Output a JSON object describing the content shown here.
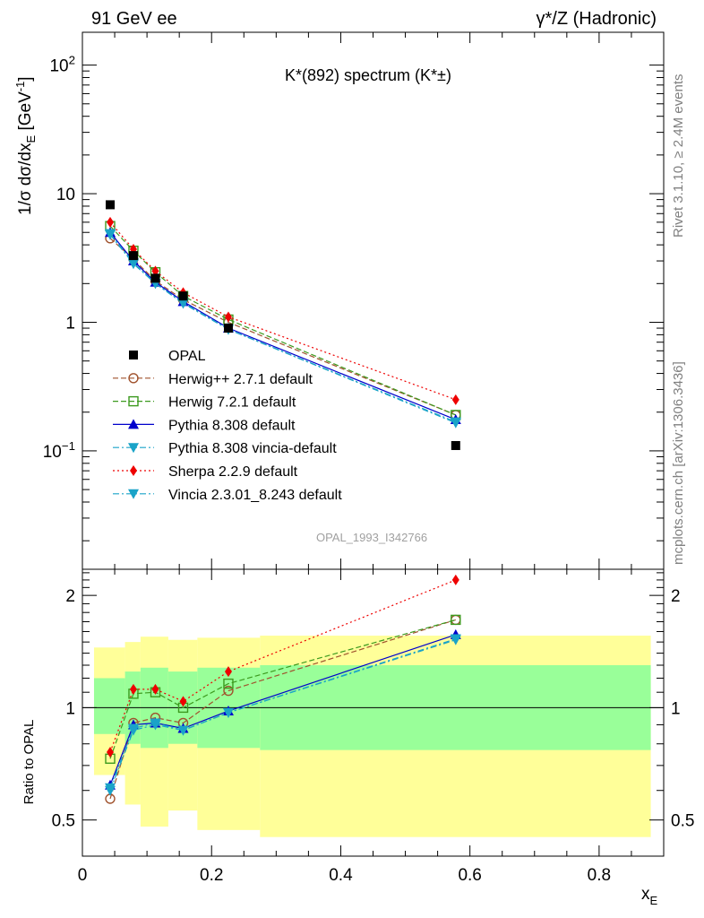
{
  "header": {
    "left": "91 GeV ee",
    "right": "γ*/Z (Hadronic)",
    "plot_title": "K*(892) spectrum (K*±)",
    "side_text_top": "Rivet 3.1.10, ≥ 2.4M events",
    "side_text_bottom": "mcplots.cern.ch [arXiv:1306.3436]",
    "watermark": "OPAL_1993_I342766"
  },
  "chart_data": [
    {
      "type": "scatter",
      "panel": "main",
      "ylabel": "1/σ dσ/dx_E [GeV^-1]",
      "yscale": "log",
      "ylim": [
        0.012,
        180
      ],
      "xlim": [
        0,
        0.9
      ],
      "yticks": [
        {
          "value": 0.1,
          "label": "10^-1"
        },
        {
          "value": 1,
          "label": "1"
        },
        {
          "value": 10,
          "label": "10"
        },
        {
          "value": 100,
          "label": "10^2"
        }
      ],
      "x": [
        0.043,
        0.079,
        0.113,
        0.156,
        0.226,
        0.578
      ],
      "series": [
        {
          "name": "OPAL",
          "color": "#000000",
          "marker": "square-filled",
          "line": "none",
          "values": [
            8.2,
            3.3,
            2.2,
            1.6,
            0.9,
            0.11
          ]
        },
        {
          "name": "Herwig++ 2.7.1 default",
          "color": "#a0522d",
          "marker": "circle-open",
          "line": "dashed",
          "values": [
            4.5,
            3.1,
            2.1,
            1.5,
            1.0,
            0.19
          ]
        },
        {
          "name": "Herwig 7.2.1 default",
          "color": "#3c9a1e",
          "marker": "square-open",
          "line": "dashed",
          "values": [
            5.6,
            3.6,
            2.45,
            1.6,
            1.05,
            0.19
          ]
        },
        {
          "name": "Pythia 8.308 default",
          "color": "#0000cc",
          "marker": "triangle-up",
          "line": "solid",
          "values": [
            5.0,
            3.0,
            2.05,
            1.45,
            0.9,
            0.175
          ]
        },
        {
          "name": "Pythia 8.308 vincia-default",
          "color": "#1aa3c8",
          "marker": "triangle-down",
          "line": "dashdot",
          "values": [
            4.8,
            2.85,
            2.0,
            1.4,
            0.88,
            0.165
          ]
        },
        {
          "name": "Sherpa 2.2.9 default",
          "color": "#ee0000",
          "marker": "diamond",
          "line": "dotted",
          "values": [
            6.0,
            3.7,
            2.5,
            1.7,
            1.1,
            0.25
          ]
        },
        {
          "name": "Vincia 2.3.01_8.243 default",
          "color": "#1aa3c8",
          "marker": "triangle-down",
          "line": "dashdot",
          "values": [
            4.9,
            2.9,
            2.0,
            1.42,
            0.88,
            0.168
          ]
        }
      ]
    },
    {
      "type": "scatter",
      "panel": "ratio",
      "ylabel": "Ratio to OPAL",
      "xlabel": "x_E",
      "yscale": "log",
      "ylim": [
        0.4,
        2.35
      ],
      "xlim": [
        0,
        0.9
      ],
      "yticks": [
        {
          "value": 0.5,
          "label": "0.5"
        },
        {
          "value": 1,
          "label": "1"
        },
        {
          "value": 2,
          "label": "2"
        }
      ],
      "xticks": [
        {
          "value": 0,
          "label": "0"
        },
        {
          "value": 0.2,
          "label": "0.2"
        },
        {
          "value": 0.4,
          "label": "0.4"
        },
        {
          "value": 0.6,
          "label": "0.6"
        },
        {
          "value": 0.8,
          "label": "0.8"
        }
      ],
      "bands": [
        {
          "x0": 0.018,
          "x1": 0.066,
          "inner": [
            0.85,
            1.2
          ],
          "outer": [
            0.66,
            1.45
          ]
        },
        {
          "x0": 0.066,
          "x1": 0.09,
          "inner": [
            0.8,
            1.25
          ],
          "outer": [
            0.55,
            1.5
          ]
        },
        {
          "x0": 0.09,
          "x1": 0.133,
          "inner": [
            0.78,
            1.28
          ],
          "outer": [
            0.48,
            1.55
          ]
        },
        {
          "x0": 0.133,
          "x1": 0.178,
          "inner": [
            0.8,
            1.25
          ],
          "outer": [
            0.53,
            1.52
          ]
        },
        {
          "x0": 0.178,
          "x1": 0.275,
          "inner": [
            0.78,
            1.28
          ],
          "outer": [
            0.47,
            1.54
          ]
        },
        {
          "x0": 0.275,
          "x1": 0.88,
          "inner": [
            0.77,
            1.3
          ],
          "outer": [
            0.45,
            1.56
          ]
        }
      ],
      "x": [
        0.043,
        0.079,
        0.113,
        0.156,
        0.226,
        0.578
      ],
      "series": [
        {
          "name": "Herwig++ 2.7.1 default",
          "values": [
            0.57,
            0.91,
            0.94,
            0.91,
            1.11,
            1.72
          ]
        },
        {
          "name": "Herwig 7.2.1 default",
          "values": [
            0.73,
            1.09,
            1.1,
            1.0,
            1.16,
            1.72
          ]
        },
        {
          "name": "Pythia 8.308 default",
          "values": [
            0.62,
            0.9,
            0.91,
            0.88,
            0.98,
            1.57
          ]
        },
        {
          "name": "Pythia 8.308 vincia-default",
          "values": [
            0.6,
            0.87,
            0.9,
            0.87,
            0.97,
            1.52
          ]
        },
        {
          "name": "Sherpa 2.2.9 default",
          "values": [
            0.76,
            1.12,
            1.12,
            1.04,
            1.25,
            2.2
          ]
        },
        {
          "name": "Vincia 2.3.01_8.243 default",
          "values": [
            0.61,
            0.88,
            0.91,
            0.87,
            0.97,
            1.53
          ]
        }
      ]
    }
  ]
}
